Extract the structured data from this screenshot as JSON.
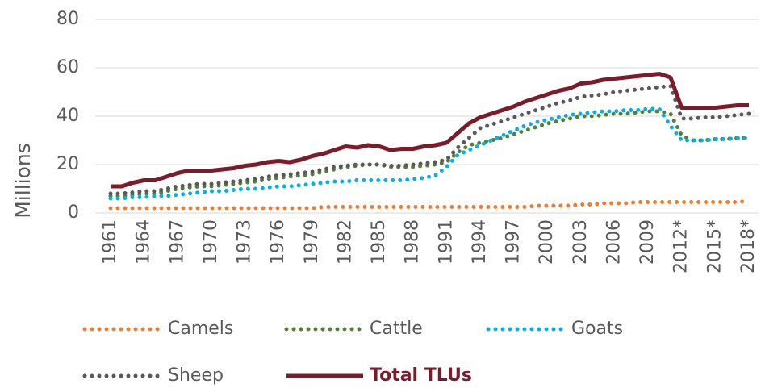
{
  "chart_data": {
    "type": "line",
    "ylabel": "Millions",
    "categories": [
      "1961",
      null,
      null,
      "1964",
      null,
      null,
      "1967",
      null,
      null,
      "1970",
      null,
      null,
      "1973",
      null,
      null,
      "1976",
      null,
      null,
      "1979",
      null,
      null,
      "1982",
      null,
      null,
      "1985",
      null,
      null,
      "1988",
      null,
      null,
      "1991",
      null,
      null,
      "1994",
      null,
      null,
      "1997",
      null,
      null,
      "2000",
      null,
      null,
      "2003",
      null,
      null,
      "2006",
      null,
      null,
      "2009",
      null,
      null,
      "2012*",
      null,
      null,
      "2015*",
      null,
      null,
      "2018*"
    ],
    "series": [
      {
        "name": "Camels",
        "color": "#ed7d31",
        "style": "dotted",
        "values": [
          2,
          2,
          2,
          2,
          2,
          2,
          2,
          2,
          2,
          2,
          2,
          2,
          2,
          2,
          2,
          2,
          2,
          2,
          2,
          2.5,
          2.5,
          2.5,
          2.5,
          2.5,
          2.5,
          2.5,
          2.5,
          2.5,
          2.5,
          2.5,
          2.5,
          2.5,
          2.5,
          2.5,
          2.5,
          2.5,
          2.5,
          2.5,
          3,
          3,
          3,
          3,
          3.5,
          3.5,
          4,
          4,
          4,
          4.5,
          4.5,
          4.5,
          4.5,
          4.5,
          4.5,
          4.5,
          4.5,
          4.5,
          4.5,
          5
        ]
      },
      {
        "name": "Cattle",
        "color": "#548235",
        "style": "dotted",
        "values": [
          7,
          7,
          7.5,
          8,
          8,
          9,
          10,
          10.5,
          11,
          11,
          11.5,
          12,
          12.5,
          13,
          14,
          14.5,
          15,
          15.5,
          16,
          17,
          18,
          19,
          19.5,
          20,
          20,
          19,
          19,
          19,
          19.5,
          20,
          21,
          25,
          28,
          29,
          30,
          31,
          32.5,
          34,
          35.5,
          37,
          38,
          39,
          40,
          40,
          40.5,
          41,
          41,
          41.5,
          42,
          42,
          41,
          32,
          30,
          30,
          30.5,
          30.5,
          31,
          31
        ]
      },
      {
        "name": "Goats",
        "color": "#00b0f0",
        "style": "dotted",
        "values": [
          6,
          6,
          6.5,
          6.5,
          7,
          7,
          7.5,
          8,
          8.5,
          9,
          9,
          9.5,
          10,
          10,
          10.5,
          11,
          11,
          11.5,
          12,
          12.5,
          13,
          13,
          13.5,
          13.5,
          13.5,
          13.5,
          13.5,
          14,
          14.5,
          15.5,
          19,
          24,
          26,
          28,
          30,
          32,
          34,
          36,
          37.5,
          38.5,
          39.5,
          40.5,
          41,
          41.5,
          42,
          42,
          42.5,
          42.5,
          43,
          43,
          36,
          30,
          30,
          30,
          30.5,
          30.5,
          31,
          31
        ]
      },
      {
        "name": "Sheep",
        "color": "#595959",
        "style": "dotted",
        "values": [
          8,
          8,
          8.5,
          9,
          9,
          10,
          11,
          11.5,
          12,
          12,
          12.5,
          13,
          13.5,
          14,
          15,
          15.5,
          16,
          16.5,
          17,
          18,
          19,
          19.5,
          20,
          20,
          20,
          19.5,
          19.5,
          20,
          20.5,
          21,
          22,
          27,
          31,
          35,
          36.5,
          38,
          39.5,
          41,
          42.5,
          44,
          45.5,
          46.5,
          48,
          48.5,
          49,
          50,
          50.5,
          51,
          51.5,
          52,
          52.5,
          39,
          39,
          39.5,
          39.5,
          40,
          40.5,
          41
        ]
      },
      {
        "name": "Total TLUs",
        "color": "#7b1c2a",
        "style": "solid",
        "values": [
          11,
          11,
          12.5,
          13.5,
          13.5,
          15,
          16.5,
          17.5,
          17.5,
          17.5,
          18,
          18.5,
          19.5,
          20,
          21,
          21.5,
          21,
          22,
          23.5,
          24.5,
          26,
          27.5,
          27,
          28,
          27.5,
          26,
          26.5,
          26.5,
          27.5,
          28,
          29,
          33,
          37,
          39.5,
          41,
          42.5,
          44,
          46,
          47.5,
          49,
          50.5,
          51.5,
          53.5,
          54,
          55,
          55.5,
          56,
          56.5,
          57,
          57.5,
          56,
          43.5,
          43.5,
          43.5,
          43.5,
          44,
          44.5,
          44.5
        ]
      }
    ],
    "ylim": [
      0,
      80
    ],
    "yticks": [
      0,
      20,
      40,
      60,
      80
    ],
    "grid": true,
    "legend": "bottom"
  }
}
